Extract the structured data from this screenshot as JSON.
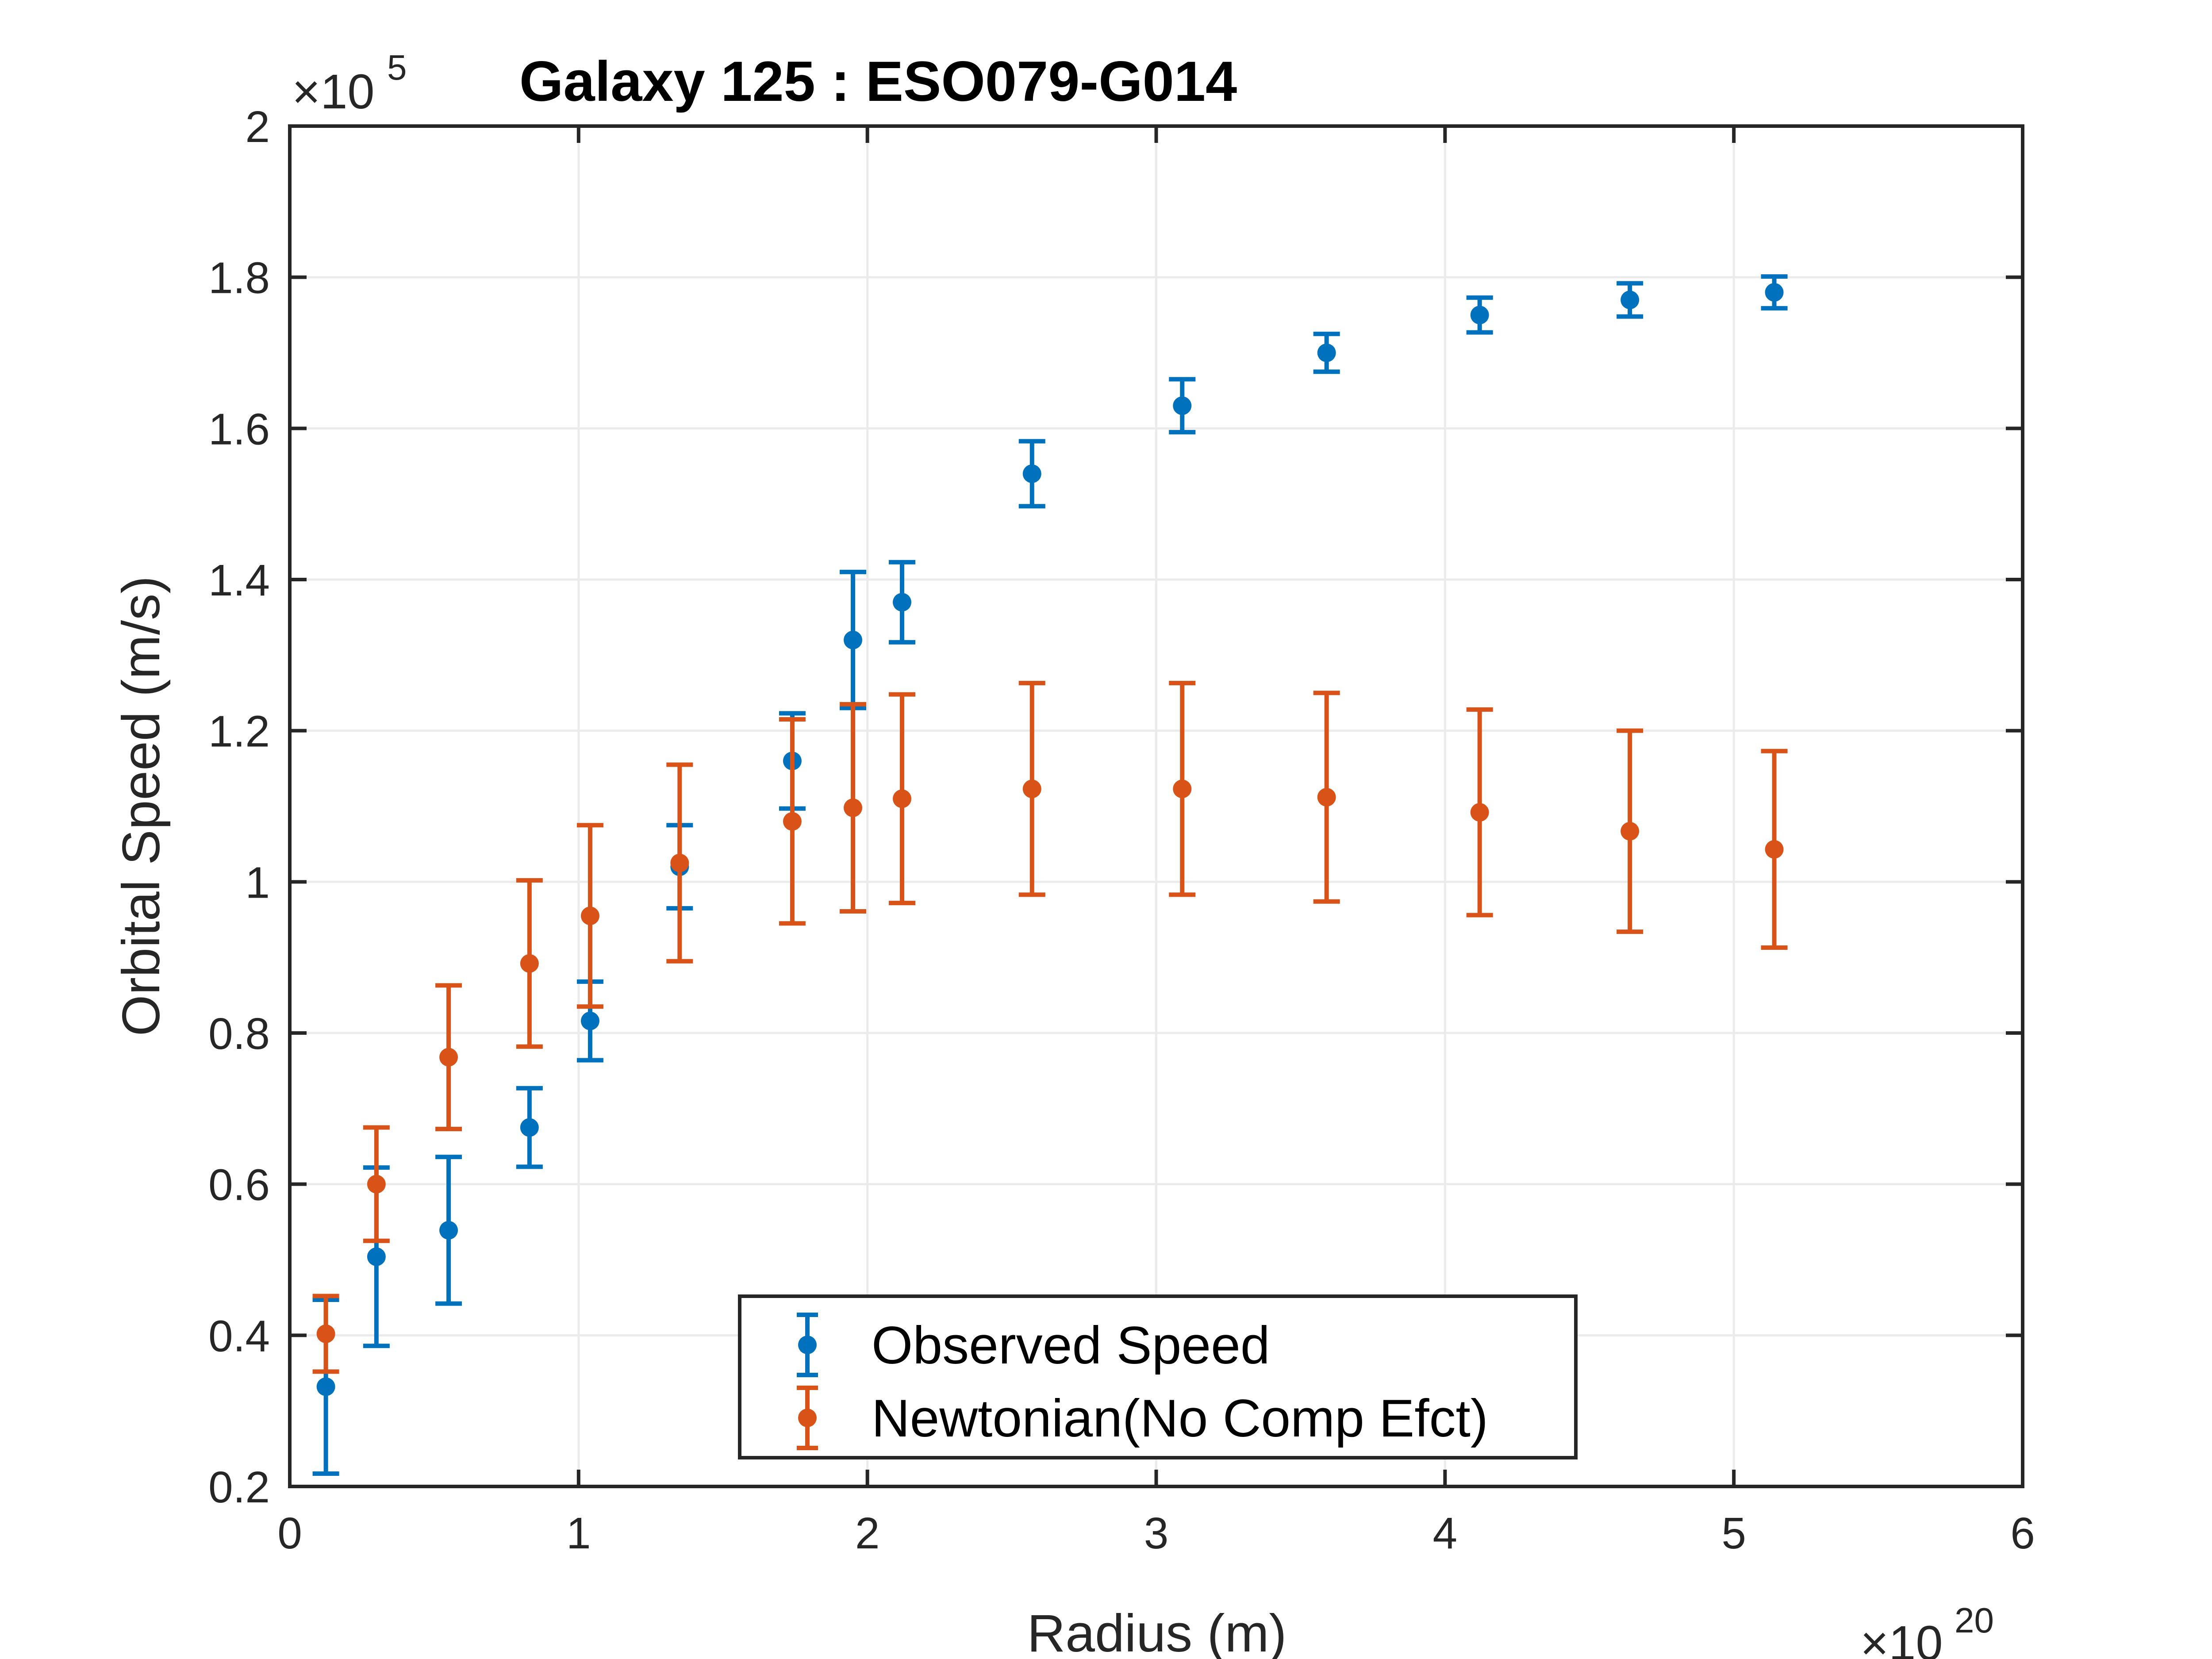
{
  "chart_data": {
    "type": "scatter",
    "title": "Galaxy 125 : ESO079-G014",
    "xlabel": "Radius (m)",
    "ylabel": "Orbital Speed (m/s)",
    "xlim": [
      0,
      6
    ],
    "ylim": [
      0.2,
      2
    ],
    "x_multiplier": {
      "base": "×10",
      "exponent": "20"
    },
    "y_multiplier": {
      "base": "×10",
      "exponent": "5"
    },
    "x_ticks": [
      "0",
      "1",
      "2",
      "3",
      "4",
      "5",
      "6"
    ],
    "y_ticks": [
      "0.2",
      "0.4",
      "0.6",
      "0.8",
      "1",
      "1.2",
      "1.4",
      "1.6",
      "1.8",
      "2"
    ],
    "grid": true,
    "legend_position": "bottom-center",
    "series": [
      {
        "name": "Observed Speed",
        "color": "#0072BD",
        "x": [
          0.125,
          0.3,
          0.55,
          0.83,
          1.04,
          1.35,
          1.74,
          1.95,
          2.12,
          2.57,
          3.09,
          3.59,
          4.12,
          4.64,
          5.14
        ],
        "y": [
          0.332,
          0.504,
          0.539,
          0.675,
          0.816,
          1.02,
          1.16,
          1.32,
          1.37,
          1.54,
          1.63,
          1.7,
          1.75,
          1.77,
          1.78
        ],
        "err": [
          0.115,
          0.118,
          0.097,
          0.052,
          0.052,
          0.055,
          0.063,
          0.09,
          0.053,
          0.043,
          0.035,
          0.025,
          0.023,
          0.022,
          0.021
        ]
      },
      {
        "name": "Newtonian(No Comp Efct)",
        "color": "#D95319",
        "x": [
          0.125,
          0.3,
          0.55,
          0.83,
          1.04,
          1.35,
          1.74,
          1.95,
          2.12,
          2.57,
          3.09,
          3.59,
          4.12,
          4.64,
          5.14
        ],
        "y": [
          0.402,
          0.6,
          0.768,
          0.892,
          0.955,
          1.025,
          1.08,
          1.098,
          1.11,
          1.123,
          1.123,
          1.112,
          1.092,
          1.067,
          1.043
        ],
        "err": [
          0.05,
          0.075,
          0.095,
          0.11,
          0.12,
          0.13,
          0.135,
          0.137,
          0.138,
          0.14,
          0.14,
          0.138,
          0.136,
          0.133,
          0.13
        ]
      }
    ]
  }
}
